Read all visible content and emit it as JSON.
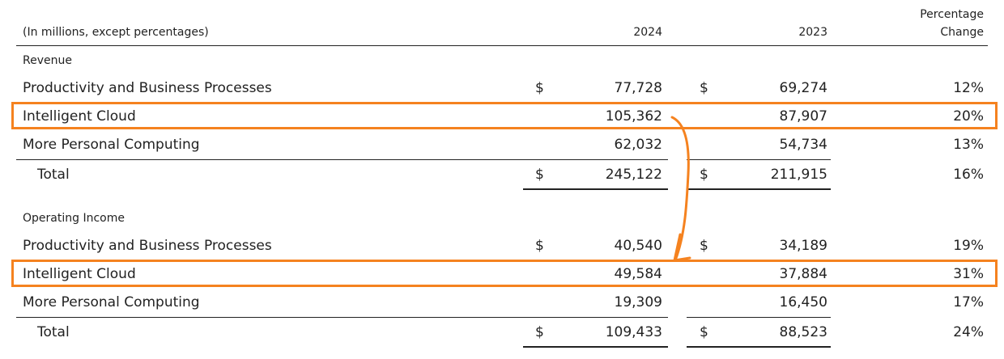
{
  "header": {
    "label": "(In millions, except percentages)",
    "col_2024": "2024",
    "col_2023": "2023",
    "col_pct_line1": "Percentage",
    "col_pct_line2": "Change"
  },
  "revenue": {
    "section_title": "Revenue",
    "rows": [
      {
        "label": "Productivity and Business Processes",
        "dollar24": "$",
        "v2024": "77,728",
        "dollar23": "$",
        "v2023": "69,274",
        "pct": "12%"
      },
      {
        "label": "Intelligent Cloud",
        "dollar24": "",
        "v2024": "105,362",
        "dollar23": "",
        "v2023": "87,907",
        "pct": "20%"
      },
      {
        "label": "More Personal Computing",
        "dollar24": "",
        "v2024": "62,032",
        "dollar23": "",
        "v2023": "54,734",
        "pct": "13%"
      },
      {
        "label": "Total",
        "dollar24": "$",
        "v2024": "245,122",
        "dollar23": "$",
        "v2023": "211,915",
        "pct": "16%"
      }
    ]
  },
  "operating_income": {
    "section_title": "Operating Income",
    "rows": [
      {
        "label": "Productivity and Business Processes",
        "dollar24": "$",
        "v2024": "40,540",
        "dollar23": "$",
        "v2023": "34,189",
        "pct": "19%"
      },
      {
        "label": "Intelligent Cloud",
        "dollar24": "",
        "v2024": "49,584",
        "dollar23": "",
        "v2023": "37,884",
        "pct": "31%"
      },
      {
        "label": "More Personal Computing",
        "dollar24": "",
        "v2024": "19,309",
        "dollar23": "",
        "v2023": "16,450",
        "pct": "17%"
      },
      {
        "label": "Total",
        "dollar24": "$",
        "v2024": "109,433",
        "dollar23": "$",
        "v2023": "88,523",
        "pct": "24%"
      }
    ]
  },
  "colors": {
    "highlight": "#f5821f",
    "text": "#222222"
  }
}
